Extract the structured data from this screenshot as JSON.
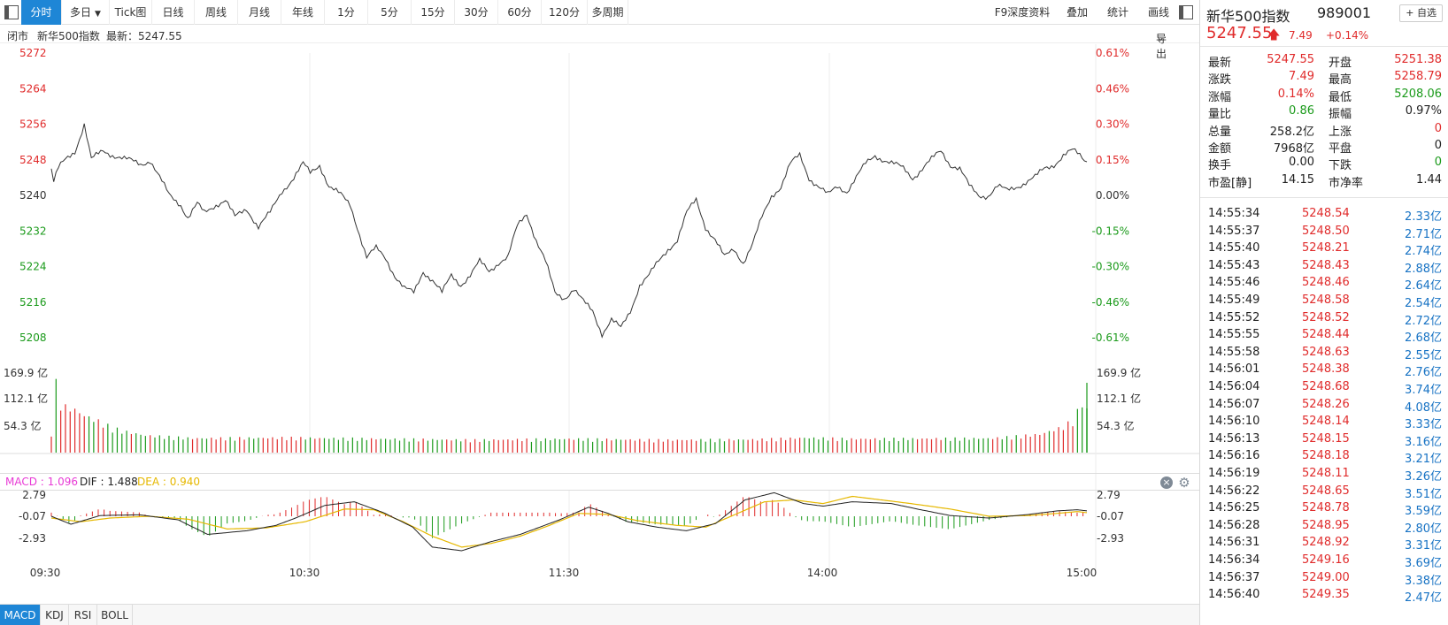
{
  "toolbar": {
    "tabs": [
      "分时",
      "多日",
      "Tick图",
      "日线",
      "周线",
      "月线",
      "年线",
      "1分",
      "5分",
      "15分",
      "30分",
      "60分",
      "120分",
      "多周期"
    ],
    "active_tab": "分时",
    "right_items": [
      "F9深度资料",
      "叠加",
      "统计",
      "画线"
    ]
  },
  "infobar": {
    "status": "闭市",
    "name": "新华500指数",
    "latest_label": "最新：5247.55",
    "export": "导出"
  },
  "price_chart": {
    "y_labels_left": [
      "5272",
      "5264",
      "5256",
      "5248",
      "5240",
      "5232",
      "5224",
      "5216",
      "5208"
    ],
    "y_labels_right": [
      "0.61%",
      "0.46%",
      "0.30%",
      "0.15%",
      "0.00%",
      "-0.15%",
      "-0.30%",
      "-0.46%",
      "-0.61%"
    ],
    "y_range": [
      5208,
      5272
    ],
    "base": 5240.06,
    "up_color": "#e02b2b",
    "down_color": "#1a9a1a",
    "line_color": "#333333"
  },
  "volume_chart": {
    "y_labels": [
      "169.9 亿",
      "112.1 亿",
      "54.3 亿"
    ]
  },
  "macd": {
    "label": "MACD : 1.096",
    "dif_label": "DIF : 1.488",
    "dea_label": "DEA : 0.940",
    "y_labels": [
      "2.79",
      "-0.07",
      "-2.93"
    ],
    "macd_color": "#e83ad6",
    "dif_color": "#222222",
    "dea_color": "#e6b800",
    "close_icon": "close-icon",
    "settings_icon": "gear-icon"
  },
  "x_axis": [
    "09:30",
    "10:30",
    "11:30",
    "14:00",
    "15:00"
  ],
  "indicator_tabs": [
    "MACD",
    "KDJ",
    "RSI",
    "BOLL"
  ],
  "active_indicator": "MACD",
  "chart_data": {
    "type": "line",
    "x_ticks": [
      "09:30",
      "10:30",
      "11:30",
      "14:00",
      "15:00"
    ],
    "price_anchors": [
      [
        0,
        5246
      ],
      [
        1,
        5243
      ],
      [
        3,
        5246
      ],
      [
        6,
        5248
      ],
      [
        10,
        5250
      ],
      [
        14,
        5256
      ],
      [
        17,
        5248
      ],
      [
        22,
        5250
      ],
      [
        27,
        5249
      ],
      [
        32,
        5248
      ],
      [
        38,
        5247
      ],
      [
        42,
        5248
      ],
      [
        45,
        5245
      ],
      [
        50,
        5240
      ],
      [
        55,
        5238
      ],
      [
        58,
        5235
      ],
      [
        62,
        5238
      ],
      [
        65,
        5236
      ],
      [
        70,
        5238
      ],
      [
        74,
        5239
      ],
      [
        78,
        5235
      ],
      [
        83,
        5237
      ],
      [
        88,
        5233
      ],
      [
        93,
        5236
      ],
      [
        98,
        5241
      ],
      [
        103,
        5244
      ],
      [
        107,
        5247
      ],
      [
        110,
        5245
      ],
      [
        114,
        5247
      ],
      [
        118,
        5242
      ],
      [
        123,
        5240
      ],
      [
        127,
        5238
      ],
      [
        130,
        5233
      ],
      [
        134,
        5226
      ],
      [
        138,
        5228
      ],
      [
        142,
        5226
      ],
      [
        146,
        5222
      ],
      [
        150,
        5219
      ],
      [
        154,
        5218
      ],
      [
        158,
        5223
      ],
      [
        162,
        5221
      ],
      [
        166,
        5218
      ],
      [
        170,
        5222
      ],
      [
        174,
        5220
      ],
      [
        178,
        5222
      ],
      [
        182,
        5225
      ],
      [
        186,
        5223
      ],
      [
        190,
        5225
      ],
      [
        194,
        5226
      ],
      [
        198,
        5233
      ],
      [
        202,
        5236
      ],
      [
        206,
        5230
      ],
      [
        210,
        5225
      ],
      [
        214,
        5218
      ],
      [
        218,
        5217
      ],
      [
        222,
        5219
      ],
      [
        226,
        5216
      ],
      [
        230,
        5214
      ],
      [
        234,
        5209
      ],
      [
        238,
        5212
      ],
      [
        242,
        5210
      ],
      [
        246,
        5214
      ],
      [
        250,
        5220
      ],
      [
        254,
        5222
      ],
      [
        258,
        5225
      ],
      [
        262,
        5228
      ],
      [
        266,
        5230
      ],
      [
        270,
        5236
      ],
      [
        274,
        5239
      ],
      [
        278,
        5233
      ],
      [
        282,
        5230
      ],
      [
        286,
        5226
      ],
      [
        290,
        5228
      ],
      [
        294,
        5225
      ],
      [
        298,
        5229
      ],
      [
        302,
        5235
      ],
      [
        306,
        5240
      ],
      [
        310,
        5242
      ],
      [
        314,
        5247
      ],
      [
        318,
        5249
      ],
      [
        322,
        5244
      ],
      [
        326,
        5242
      ],
      [
        330,
        5240
      ],
      [
        334,
        5242
      ],
      [
        338,
        5241
      ],
      [
        342,
        5244
      ],
      [
        346,
        5247
      ],
      [
        350,
        5249
      ],
      [
        354,
        5248
      ],
      [
        358,
        5247
      ],
      [
        362,
        5246
      ],
      [
        366,
        5244
      ],
      [
        370,
        5246
      ],
      [
        374,
        5248
      ],
      [
        378,
        5250
      ],
      [
        382,
        5247
      ],
      [
        386,
        5246
      ],
      [
        390,
        5242
      ],
      [
        394,
        5240
      ],
      [
        398,
        5240
      ],
      [
        402,
        5242
      ],
      [
        406,
        5241
      ],
      [
        410,
        5242
      ],
      [
        414,
        5243
      ],
      [
        418,
        5244
      ],
      [
        422,
        5246
      ],
      [
        426,
        5247
      ],
      [
        430,
        5249
      ],
      [
        434,
        5250
      ],
      [
        437,
        5249
      ],
      [
        440,
        5247.55
      ]
    ],
    "volume_anchors": [
      [
        0,
        30
      ],
      [
        1,
        170
      ],
      [
        2,
        120
      ],
      [
        3,
        95
      ],
      [
        4,
        85
      ],
      [
        6,
        80
      ],
      [
        10,
        75
      ],
      [
        14,
        65
      ],
      [
        20,
        55
      ],
      [
        25,
        45
      ],
      [
        30,
        38
      ],
      [
        40,
        30
      ],
      [
        60,
        25
      ],
      [
        100,
        26
      ],
      [
        140,
        24
      ],
      [
        180,
        22
      ],
      [
        220,
        24
      ],
      [
        260,
        22
      ],
      [
        300,
        23
      ],
      [
        320,
        26
      ],
      [
        340,
        24
      ],
      [
        400,
        25
      ],
      [
        420,
        32
      ],
      [
        430,
        45
      ],
      [
        435,
        60
      ],
      [
        440,
        115
      ]
    ],
    "volume_max": 190,
    "dif_anchors": [
      [
        0,
        0
      ],
      [
        10,
        -2.2
      ],
      [
        25,
        0.2
      ],
      [
        45,
        0.4
      ],
      [
        65,
        -1
      ],
      [
        80,
        -5
      ],
      [
        100,
        -4
      ],
      [
        115,
        -2.5
      ],
      [
        125,
        -0.5
      ],
      [
        140,
        3
      ],
      [
        155,
        4
      ],
      [
        170,
        1
      ],
      [
        185,
        -3
      ],
      [
        195,
        -8.5
      ],
      [
        210,
        -9.5
      ],
      [
        225,
        -7
      ],
      [
        240,
        -5
      ],
      [
        260,
        -1
      ],
      [
        275,
        2.5
      ],
      [
        285,
        0.8
      ],
      [
        295,
        -1.5
      ],
      [
        310,
        -3
      ],
      [
        325,
        -4
      ],
      [
        340,
        -2
      ],
      [
        355,
        4.5
      ],
      [
        370,
        6.5
      ],
      [
        385,
        3.5
      ],
      [
        395,
        2.8
      ],
      [
        410,
        4
      ],
      [
        430,
        3.5
      ],
      [
        445,
        1.8
      ],
      [
        460,
        0.2
      ],
      [
        480,
        -0.5
      ],
      [
        500,
        0.5
      ],
      [
        515,
        1.5
      ],
      [
        525,
        1.8
      ],
      [
        530,
        1.5
      ]
    ],
    "dea_anchors": [
      [
        0,
        -0.5
      ],
      [
        15,
        -1.5
      ],
      [
        30,
        -0.5
      ],
      [
        50,
        0
      ],
      [
        70,
        -0.8
      ],
      [
        90,
        -3.5
      ],
      [
        110,
        -3.2
      ],
      [
        130,
        -1.5
      ],
      [
        150,
        2
      ],
      [
        165,
        1.8
      ],
      [
        180,
        -1.5
      ],
      [
        195,
        -5.5
      ],
      [
        210,
        -8.5
      ],
      [
        225,
        -7.5
      ],
      [
        240,
        -5.5
      ],
      [
        255,
        -2.5
      ],
      [
        270,
        0.8
      ],
      [
        285,
        0.5
      ],
      [
        300,
        -1.2
      ],
      [
        320,
        -2.5
      ],
      [
        335,
        -3
      ],
      [
        350,
        0.5
      ],
      [
        365,
        4
      ],
      [
        380,
        4.5
      ],
      [
        395,
        3.5
      ],
      [
        410,
        5.5
      ],
      [
        425,
        4.5
      ],
      [
        440,
        3.5
      ],
      [
        460,
        2
      ],
      [
        480,
        0
      ],
      [
        500,
        0.2
      ],
      [
        515,
        0.8
      ],
      [
        525,
        1.3
      ],
      [
        530,
        1
      ]
    ],
    "macd_range": [
      -10,
      10
    ]
  },
  "right_panel": {
    "title": "新华500指数",
    "code": "989001",
    "watch_button": "+ 自选",
    "price": "5247.55",
    "arrow": "🡅",
    "change": "7.49",
    "change_pct": "+0.14%",
    "quote": [
      {
        "l1": "最新",
        "v1": "5247.55",
        "c1": "red",
        "l2": "开盘",
        "v2": "5251.38",
        "c2": "red"
      },
      {
        "l1": "涨跌",
        "v1": "7.49",
        "c1": "red",
        "l2": "最高",
        "v2": "5258.79",
        "c2": "red"
      },
      {
        "l1": "涨幅",
        "v1": "0.14%",
        "c1": "red",
        "l2": "最低",
        "v2": "5208.06",
        "c2": "green"
      },
      {
        "l1": "量比",
        "v1": "0.86",
        "c1": "green",
        "l2": "振幅",
        "v2": "0.97%",
        "c2": "dark"
      },
      {
        "l1": "总量",
        "v1": "258.2亿",
        "c1": "dark",
        "l2": "上涨",
        "v2": "0",
        "c2": "red"
      },
      {
        "l1": "金额",
        "v1": "7968亿",
        "c1": "dark",
        "l2": "平盘",
        "v2": "0",
        "c2": "dark"
      },
      {
        "l1": "换手",
        "v1": "0.00",
        "c1": "dark",
        "l2": "下跌",
        "v2": "0",
        "c2": "green"
      },
      {
        "l1": "市盈[静]",
        "v1": "14.15",
        "c1": "dark",
        "l2": "市净率",
        "v2": "1.44",
        "c2": "dark"
      }
    ],
    "ticks": [
      {
        "time": "14:55:34",
        "price": "5248.54",
        "vol": "2.33亿"
      },
      {
        "time": "14:55:37",
        "price": "5248.50",
        "vol": "2.71亿"
      },
      {
        "time": "14:55:40",
        "price": "5248.21",
        "vol": "2.74亿"
      },
      {
        "time": "14:55:43",
        "price": "5248.43",
        "vol": "2.88亿"
      },
      {
        "time": "14:55:46",
        "price": "5248.46",
        "vol": "2.64亿"
      },
      {
        "time": "14:55:49",
        "price": "5248.58",
        "vol": "2.54亿"
      },
      {
        "time": "14:55:52",
        "price": "5248.52",
        "vol": "2.72亿"
      },
      {
        "time": "14:55:55",
        "price": "5248.44",
        "vol": "2.68亿"
      },
      {
        "time": "14:55:58",
        "price": "5248.63",
        "vol": "2.55亿"
      },
      {
        "time": "14:56:01",
        "price": "5248.38",
        "vol": "2.76亿"
      },
      {
        "time": "14:56:04",
        "price": "5248.68",
        "vol": "3.74亿"
      },
      {
        "time": "14:56:07",
        "price": "5248.26",
        "vol": "4.08亿"
      },
      {
        "time": "14:56:10",
        "price": "5248.14",
        "vol": "3.33亿"
      },
      {
        "time": "14:56:13",
        "price": "5248.15",
        "vol": "3.16亿"
      },
      {
        "time": "14:56:16",
        "price": "5248.18",
        "vol": "3.21亿"
      },
      {
        "time": "14:56:19",
        "price": "5248.11",
        "vol": "3.26亿"
      },
      {
        "time": "14:56:22",
        "price": "5248.65",
        "vol": "3.51亿"
      },
      {
        "time": "14:56:25",
        "price": "5248.78",
        "vol": "3.59亿"
      },
      {
        "time": "14:56:28",
        "price": "5248.95",
        "vol": "2.80亿"
      },
      {
        "time": "14:56:31",
        "price": "5248.92",
        "vol": "3.31亿"
      },
      {
        "time": "14:56:34",
        "price": "5249.16",
        "vol": "3.69亿"
      },
      {
        "time": "14:56:37",
        "price": "5249.00",
        "vol": "3.38亿"
      },
      {
        "time": "14:56:40",
        "price": "5249.35",
        "vol": "2.47亿"
      }
    ]
  }
}
